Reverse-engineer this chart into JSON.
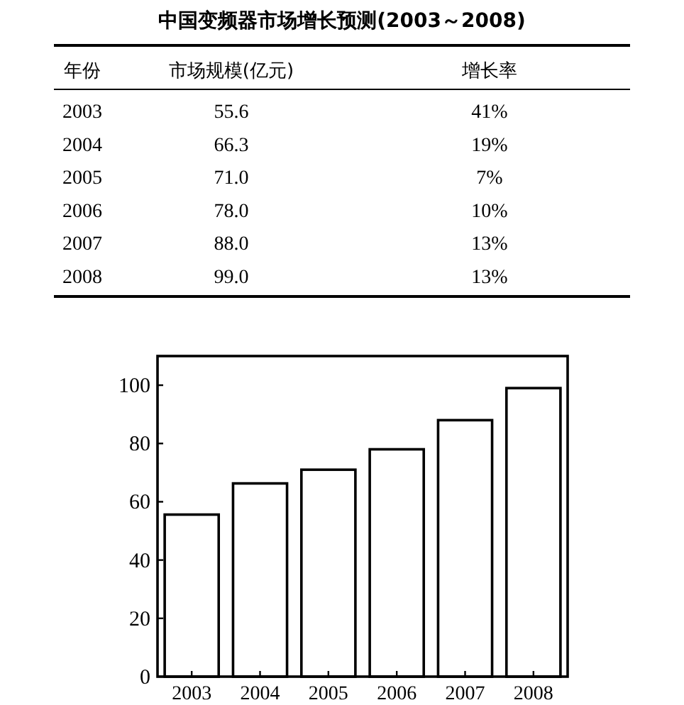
{
  "chart_data": {
    "type": "bar",
    "title": "中国变频器市场增长预测(2003～2008)",
    "categories": [
      "2003",
      "2004",
      "2005",
      "2006",
      "2007",
      "2008"
    ],
    "values": [
      55.6,
      66.3,
      71.0,
      78.0,
      88.0,
      99.0
    ],
    "color": "#ffffff",
    "annotations": [
      "年份",
      "市场规模(亿元)",
      "增长率",
      "2003",
      "55.6",
      "41%",
      "2004",
      "66.3",
      "19%",
      "2005",
      "71.0",
      "7%",
      "2006",
      "78.0",
      "10%",
      "2007",
      "88.0",
      "13%",
      "2008",
      "99.0",
      "13%"
    ],
    "ylim": [
      0,
      110
    ],
    "yticks": [
      0,
      20,
      40,
      60,
      80,
      100
    ],
    "grid": false
  }
}
